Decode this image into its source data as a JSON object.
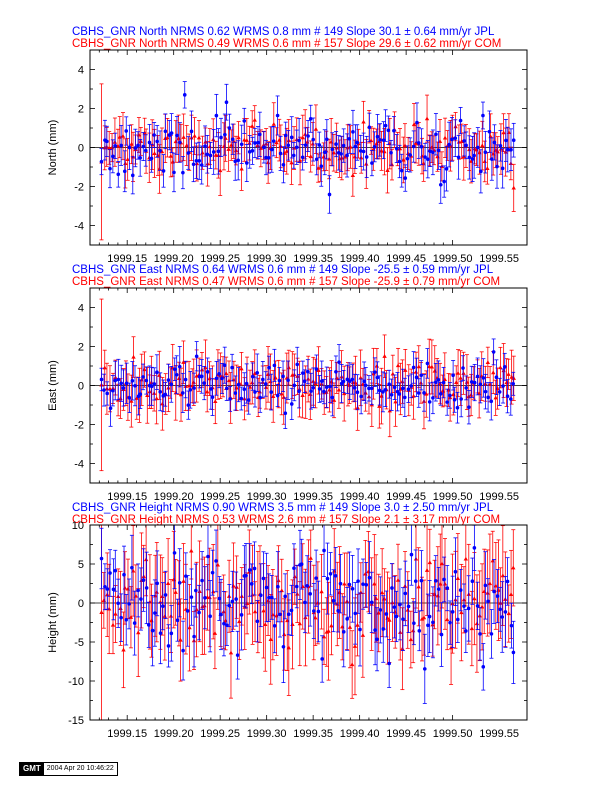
{
  "chart_data": [
    {
      "type": "scatter",
      "component": "north",
      "title_lines": [
        {
          "text": "CBHS_GNR North NRMS 0.62 WRMS  0.8 mm # 149 Slope   30.1 ±  0.64 mm/yr JPL",
          "color": "#0000ff"
        },
        {
          "text": "CBHS_GNR North NRMS 0.49 WRMS  0.6 mm # 157 Slope   29.6 ±  0.62 mm/yr COM",
          "color": "#ff0000"
        }
      ],
      "ylabel": "North (mm)",
      "xlim": [
        1999.11,
        1999.58
      ],
      "ylim": [
        -5,
        5
      ],
      "y_ticks": [
        -4,
        -2,
        0,
        2,
        4
      ],
      "x_ticks": [
        "1999.15",
        "1999.20",
        "1999.25",
        "1999.30",
        "1999.35",
        "1999.40",
        "1999.45",
        "1999.50",
        "1999.55"
      ],
      "series": [
        {
          "color": "#0000ff",
          "marker": "circle",
          "count": 149,
          "wrms": 0.8,
          "sigma": 0.9,
          "seed": 11
        },
        {
          "color": "#ff0000",
          "marker": "triangle",
          "count": 157,
          "wrms": 0.6,
          "sigma": 1.0,
          "seed": 23
        }
      ]
    },
    {
      "type": "scatter",
      "component": "east",
      "title_lines": [
        {
          "text": "CBHS_GNR East NRMS 0.64 WRMS  0.6 mm # 149 Slope  -25.5 ±  0.59 mm/yr JPL",
          "color": "#0000ff"
        },
        {
          "text": "CBHS_GNR East NRMS 0.47 WRMS  0.6 mm # 157 Slope  -25.9 ±  0.79 mm/yr COM",
          "color": "#ff0000"
        }
      ],
      "ylabel": "East (mm)",
      "xlim": [
        1999.11,
        1999.58
      ],
      "ylim": [
        -5,
        5
      ],
      "y_ticks": [
        -4,
        -2,
        0,
        2,
        4
      ],
      "x_ticks": [
        "1999.15",
        "1999.20",
        "1999.25",
        "1999.30",
        "1999.35",
        "1999.40",
        "1999.45",
        "1999.50",
        "1999.55"
      ],
      "series": [
        {
          "color": "#0000ff",
          "marker": "circle",
          "count": 149,
          "wrms": 0.6,
          "sigma": 0.8,
          "seed": 37
        },
        {
          "color": "#ff0000",
          "marker": "triangle",
          "count": 157,
          "wrms": 0.6,
          "sigma": 1.1,
          "seed": 41
        }
      ]
    },
    {
      "type": "scatter",
      "component": "height",
      "title_lines": [
        {
          "text": "CBHS_GNR Height NRMS 0.90 WRMS  3.5 mm # 149 Slope    3.0 ±  2.50 mm/yr JPL",
          "color": "#0000ff"
        },
        {
          "text": "CBHS_GNR Height NRMS 0.53 WRMS  2.6 mm # 157 Slope    2.1 ±  3.17 mm/yr COM",
          "color": "#ff0000"
        }
      ],
      "ylabel": "Height (mm)",
      "xlim": [
        1999.11,
        1999.58
      ],
      "ylim": [
        -15,
        10
      ],
      "y_ticks": [
        -15,
        -10,
        -5,
        0,
        5,
        10
      ],
      "x_ticks": [
        "1999.15",
        "1999.20",
        "1999.25",
        "1999.30",
        "1999.35",
        "1999.40",
        "1999.45",
        "1999.50",
        "1999.55"
      ],
      "series": [
        {
          "color": "#0000ff",
          "marker": "circle",
          "count": 149,
          "wrms": 3.5,
          "sigma": 3.6,
          "seed": 53
        },
        {
          "color": "#ff0000",
          "marker": "triangle",
          "count": 157,
          "wrms": 2.6,
          "sigma": 5.0,
          "seed": 67
        }
      ]
    }
  ],
  "stamp": {
    "logo": "GMT",
    "date": "2004 Apr 20 10:46:22"
  }
}
